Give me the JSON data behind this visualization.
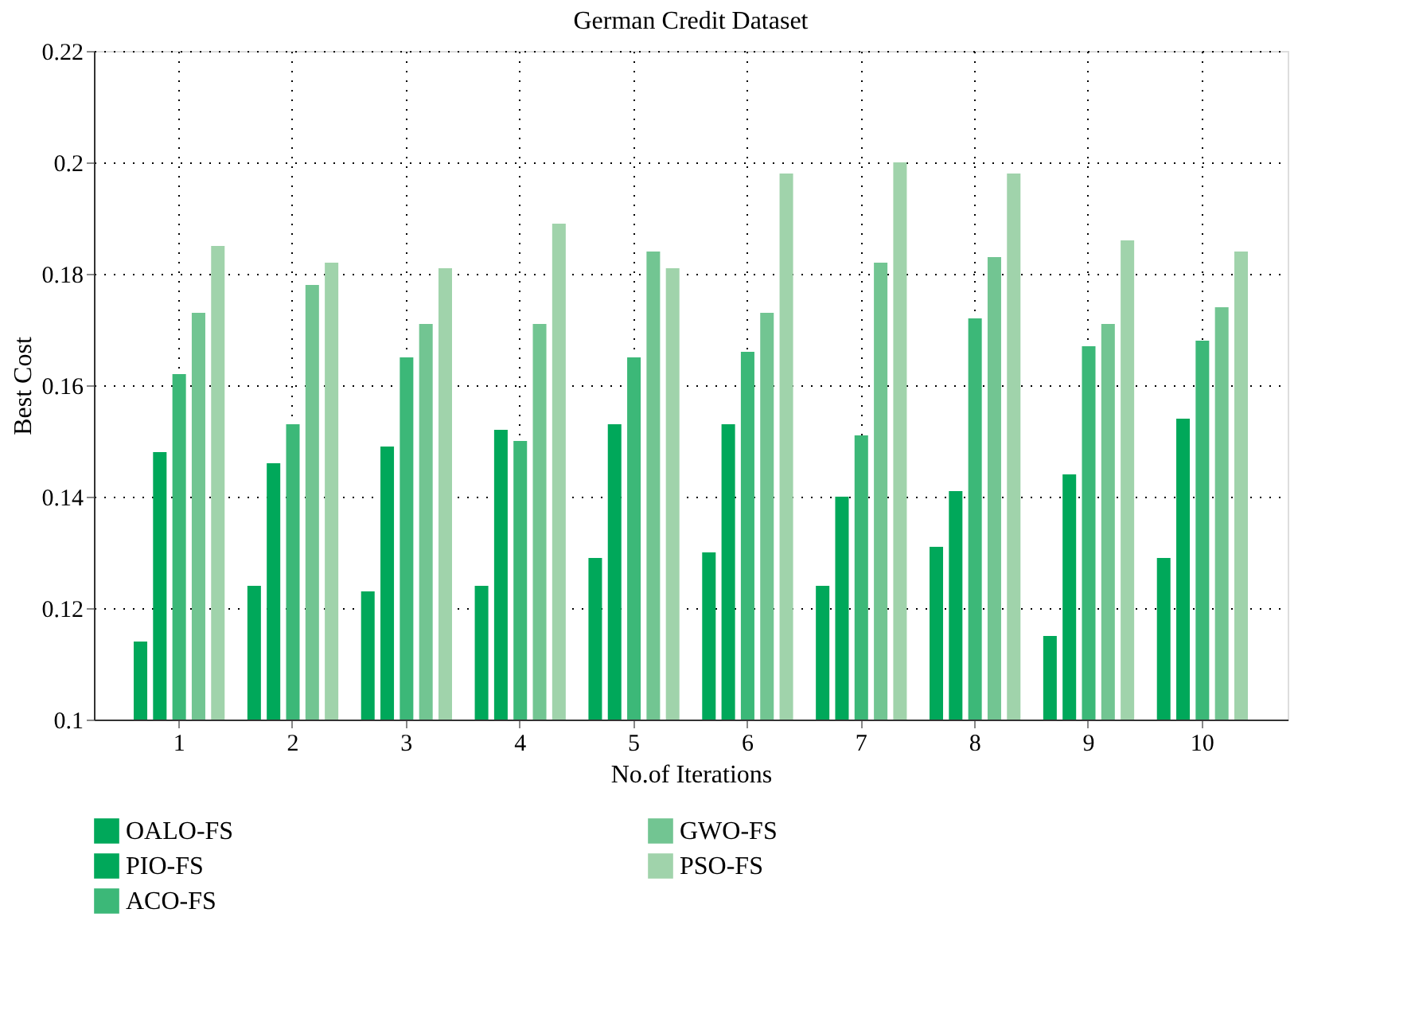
{
  "chart_data": {
    "type": "bar",
    "title": "German Credit Dataset",
    "xlabel": "No.of Iterations",
    "ylabel": "Best Cost",
    "categories": [
      "1",
      "2",
      "3",
      "4",
      "5",
      "6",
      "7",
      "8",
      "9",
      "10"
    ],
    "series": [
      {
        "name": "OALO-FS",
        "color": "#00a85a",
        "values": [
          0.114,
          0.124,
          0.123,
          0.124,
          0.129,
          0.13,
          0.124,
          0.131,
          0.115,
          0.129
        ]
      },
      {
        "name": "PIO-FS",
        "color": "#00a85a",
        "values": [
          0.148,
          0.146,
          0.149,
          0.152,
          0.153,
          0.153,
          0.14,
          0.141,
          0.144,
          0.154
        ]
      },
      {
        "name": "ACO-FS",
        "color": "#3cb878",
        "values": [
          0.162,
          0.153,
          0.165,
          0.15,
          0.165,
          0.166,
          0.151,
          0.172,
          0.167,
          0.168
        ]
      },
      {
        "name": "GWO-FS",
        "color": "#72c592",
        "values": [
          0.173,
          0.178,
          0.171,
          0.171,
          0.184,
          0.173,
          0.182,
          0.183,
          0.171,
          0.174
        ]
      },
      {
        "name": "PSO-FS",
        "color": "#a0d3ab",
        "values": [
          0.185,
          0.182,
          0.181,
          0.189,
          0.181,
          0.198,
          0.2,
          0.198,
          0.186,
          0.184
        ]
      }
    ],
    "ylim": [
      0.1,
      0.22
    ],
    "yticks": [
      0.1,
      0.12,
      0.14,
      0.16,
      0.18,
      0.2,
      0.22
    ],
    "grid": true,
    "legend": "bottom"
  }
}
